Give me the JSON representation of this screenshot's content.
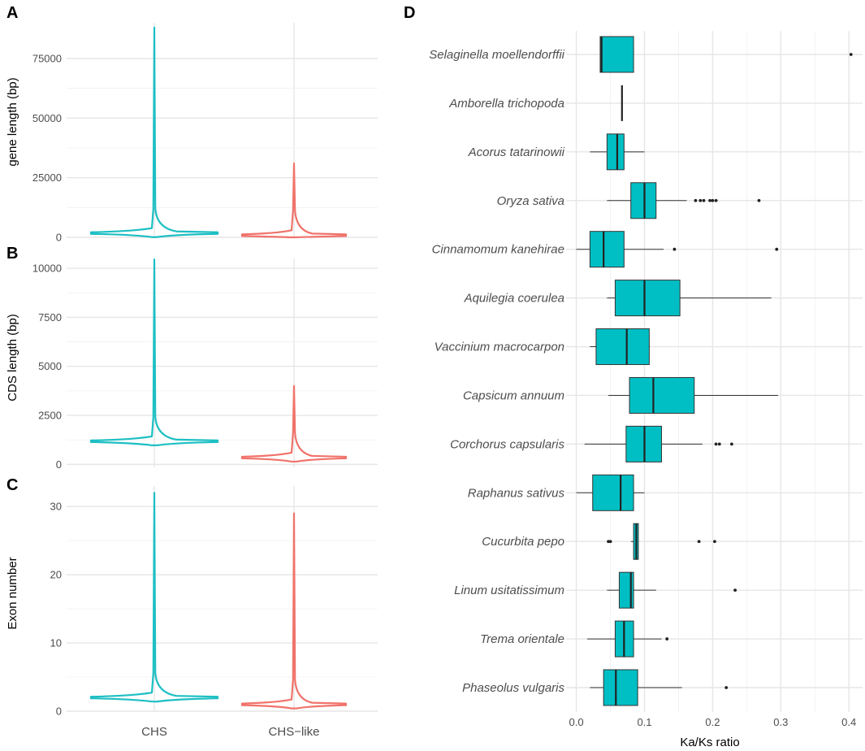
{
  "chart_data": [
    {
      "panel": "A",
      "type": "violin",
      "ylabel": "gene length (bp)",
      "categories": [
        "CHS",
        "CHS−like"
      ],
      "ylim": [
        0,
        90000
      ],
      "yticks": [
        0,
        25000,
        50000,
        75000
      ],
      "series": [
        {
          "name": "CHS",
          "color": "#1DBFC3",
          "max": 88000,
          "median": 1800
        },
        {
          "name": "CHS−like",
          "color": "#F0736B",
          "max": 31000,
          "median": 900
        }
      ]
    },
    {
      "panel": "B",
      "type": "violin",
      "ylabel": "CDS length (bp)",
      "categories": [
        "CHS",
        "CHS−like"
      ],
      "ylim": [
        -150,
        10500
      ],
      "yticks": [
        0,
        2500,
        5000,
        7500,
        10000
      ],
      "series": [
        {
          "name": "CHS",
          "color": "#1DBFC3",
          "max": 10450,
          "median": 1180
        },
        {
          "name": "CHS−like",
          "color": "#F0736B",
          "max": 4000,
          "median": 350
        }
      ]
    },
    {
      "panel": "C",
      "type": "violin",
      "ylabel": "Exon number",
      "categories": [
        "CHS",
        "CHS−like"
      ],
      "ylim": [
        0,
        33
      ],
      "yticks": [
        0,
        10,
        20,
        30
      ],
      "series": [
        {
          "name": "CHS",
          "color": "#1DBFC3",
          "max": 32,
          "median": 2
        },
        {
          "name": "CHS−like",
          "color": "#F0736B",
          "max": 29,
          "median": 1
        }
      ]
    },
    {
      "panel": "D",
      "type": "boxplot",
      "orientation": "horizontal",
      "xlabel": "Ka/Ks ratio",
      "xlim": [
        -0.015,
        0.42
      ],
      "xticks": [
        0.0,
        0.1,
        0.2,
        0.3,
        0.4
      ],
      "xtick_labels": [
        "0.0",
        "0.1",
        "0.2",
        "0.3",
        "0.4"
      ],
      "box_color": "#00BFC4",
      "species": [
        {
          "name": "Selaginella moellendorffii",
          "q1": 0.035,
          "median": 0.037,
          "q3": 0.084,
          "whisker_low": 0.035,
          "whisker_high": 0.084,
          "outliers": [
            0.403
          ]
        },
        {
          "name": "Amborella trichopoda",
          "q1": 0.067,
          "median": 0.067,
          "q3": 0.067,
          "whisker_low": 0.067,
          "whisker_high": 0.067,
          "outliers": []
        },
        {
          "name": "Acorus tatarinowii",
          "q1": 0.045,
          "median": 0.06,
          "q3": 0.07,
          "whisker_low": 0.02,
          "whisker_high": 0.1,
          "outliers": []
        },
        {
          "name": "Oryza sativa",
          "q1": 0.08,
          "median": 0.1,
          "q3": 0.117,
          "whisker_low": 0.045,
          "whisker_high": 0.162,
          "outliers": [
            0.175,
            0.182,
            0.187,
            0.196,
            0.2,
            0.205,
            0.268
          ]
        },
        {
          "name": "Cinnamomum kanehirae",
          "q1": 0.02,
          "median": 0.04,
          "q3": 0.07,
          "whisker_low": 0.0,
          "whisker_high": 0.128,
          "outliers": [
            0.144,
            0.294
          ]
        },
        {
          "name": "Aquilegia coerulea",
          "q1": 0.057,
          "median": 0.1,
          "q3": 0.152,
          "whisker_low": 0.045,
          "whisker_high": 0.286,
          "outliers": []
        },
        {
          "name": "Vaccinium macrocarpon",
          "q1": 0.029,
          "median": 0.074,
          "q3": 0.107,
          "whisker_low": 0.02,
          "whisker_high": 0.108,
          "outliers": []
        },
        {
          "name": "Capsicum annuum",
          "q1": 0.078,
          "median": 0.113,
          "q3": 0.173,
          "whisker_low": 0.047,
          "whisker_high": 0.296,
          "outliers": []
        },
        {
          "name": "Corchorus capsularis",
          "q1": 0.073,
          "median": 0.1,
          "q3": 0.125,
          "whisker_low": 0.012,
          "whisker_high": 0.185,
          "outliers": [
            0.205,
            0.21,
            0.228
          ]
        },
        {
          "name": "Raphanus sativus",
          "q1": 0.024,
          "median": 0.065,
          "q3": 0.084,
          "whisker_low": 0.0,
          "whisker_high": 0.1,
          "outliers": []
        },
        {
          "name": "Cucurbita pepo",
          "q1": 0.084,
          "median": 0.088,
          "q3": 0.091,
          "whisker_low": 0.08,
          "whisker_high": 0.091,
          "outliers": [
            0.047,
            0.05,
            0.18,
            0.203
          ]
        },
        {
          "name": "Linum usitatissimum",
          "q1": 0.063,
          "median": 0.08,
          "q3": 0.084,
          "whisker_low": 0.045,
          "whisker_high": 0.117,
          "outliers": [
            0.233
          ]
        },
        {
          "name": "Trema orientale",
          "q1": 0.057,
          "median": 0.07,
          "q3": 0.084,
          "whisker_low": 0.016,
          "whisker_high": 0.125,
          "outliers": [
            0.133
          ]
        },
        {
          "name": "Phaseolus vulgaris",
          "q1": 0.04,
          "median": 0.058,
          "q3": 0.09,
          "whisker_low": 0.02,
          "whisker_high": 0.155,
          "outliers": [
            0.22
          ]
        }
      ]
    }
  ]
}
